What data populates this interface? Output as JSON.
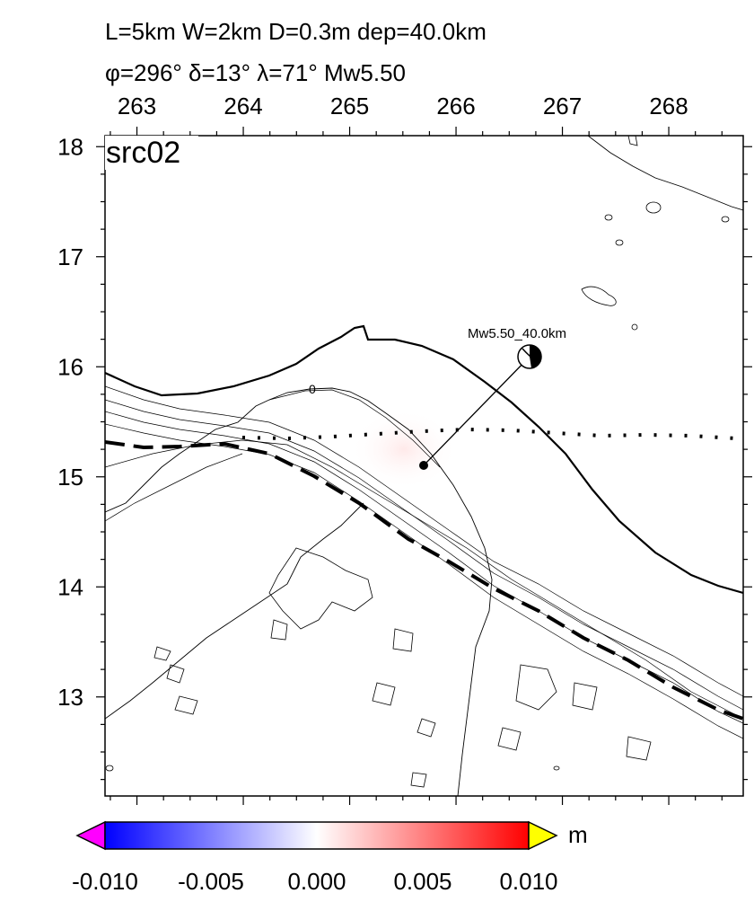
{
  "header": {
    "line1": "L=5km W=2km D=0.3m dep=40.0km",
    "line2": "φ=296° δ=13° λ=71° Mw5.50"
  },
  "map": {
    "panel_label": "src02",
    "lon_ticks": [
      "263",
      "264",
      "265",
      "266",
      "267",
      "268"
    ],
    "lat_ticks": [
      "18",
      "17",
      "16",
      "15",
      "14",
      "13"
    ],
    "lon_range": [
      262.7,
      268.7
    ],
    "lat_range": [
      12.1,
      18.1
    ],
    "contour_label": "0",
    "source_label": "Mw5.50_40.0km",
    "epicenter": {
      "lon": 265.7,
      "lat": 15.1
    },
    "beachball_label_anchor": {
      "lon": 266.7,
      "lat": 16.1
    }
  },
  "colorbar": {
    "unit": "m",
    "tick_labels": [
      "-0.010",
      "-0.005",
      "0.000",
      "0.005",
      "0.010"
    ],
    "min": -0.01,
    "max": 0.01,
    "colors": {
      "low_overflow": "#ff00ff",
      "low": "#0000ff",
      "mid": "#ffffff",
      "high": "#ff0000",
      "high_overflow": "#ffff00"
    }
  }
}
